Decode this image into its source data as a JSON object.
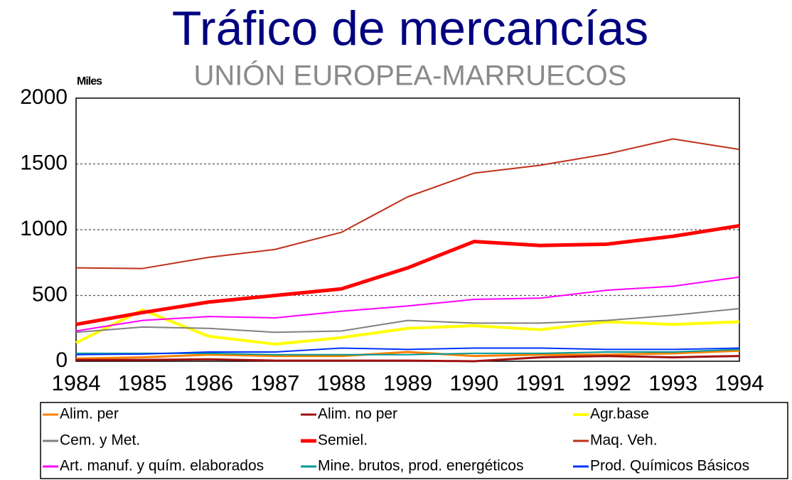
{
  "chart_data": {
    "type": "line",
    "title": "Tráfico de mercancías",
    "subtitle": "UNIÓN EUROPEA-MARRUECOS",
    "y_label": "Miles",
    "x": [
      1984,
      1985,
      1986,
      1987,
      1988,
      1989,
      1990,
      1991,
      1992,
      1993,
      1994
    ],
    "xlim": [
      1984,
      1994
    ],
    "ylim": [
      0,
      2000
    ],
    "yticks": [
      0,
      500,
      1000,
      1500,
      2000
    ],
    "grid": true,
    "legend": "bottom",
    "series": [
      {
        "name": "Alim. per",
        "color": "#ff8000",
        "width": 3,
        "values": [
          20,
          30,
          50,
          40,
          40,
          70,
          40,
          50,
          50,
          60,
          80
        ]
      },
      {
        "name": "Alim. no per",
        "color": "#a01010",
        "width": 3,
        "values": [
          10,
          10,
          15,
          5,
          5,
          5,
          0,
          30,
          40,
          30,
          40
        ]
      },
      {
        "name": "Agr.base",
        "color": "#ffff00",
        "width": 4,
        "values": [
          140,
          390,
          190,
          130,
          180,
          250,
          270,
          240,
          300,
          280,
          300
        ]
      },
      {
        "name": "Cem. y Met.",
        "color": "#808080",
        "width": 2,
        "values": [
          220,
          260,
          250,
          220,
          230,
          310,
          290,
          290,
          310,
          350,
          400
        ]
      },
      {
        "name": "Semiel.",
        "color": "#ff0000",
        "width": 5,
        "values": [
          280,
          370,
          450,
          500,
          550,
          710,
          910,
          880,
          890,
          950,
          1030
        ]
      },
      {
        "name": "Maq. Veh.",
        "color": "#c0301a",
        "width": 2,
        "values": [
          710,
          705,
          790,
          850,
          980,
          1250,
          1430,
          1490,
          1575,
          1690,
          1610
        ]
      },
      {
        "name": "Art. manuf. y quím. elaborados",
        "color": "#ff00ff",
        "width": 2,
        "values": [
          230,
          310,
          340,
          330,
          380,
          420,
          470,
          480,
          540,
          570,
          640
        ]
      },
      {
        "name": "Mine. brutos, prod. energéticos",
        "color": "#009999",
        "width": 2,
        "values": [
          60,
          60,
          60,
          50,
          50,
          50,
          60,
          60,
          70,
          70,
          90
        ]
      },
      {
        "name": "Prod. Químicos Básicos",
        "color": "#0033ff",
        "width": 2,
        "values": [
          50,
          55,
          70,
          70,
          100,
          90,
          100,
          100,
          90,
          90,
          100
        ]
      }
    ]
  }
}
